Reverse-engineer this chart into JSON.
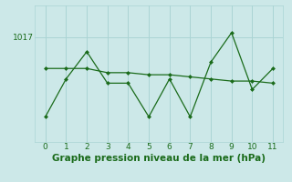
{
  "title": "Graphe pression niveau de la mer (hPa)",
  "background_color": "#cce8e8",
  "line_color": "#1a6b1a",
  "grid_color": "#aad4d4",
  "x_values": [
    0,
    1,
    2,
    3,
    4,
    5,
    6,
    7,
    8,
    9,
    10,
    11
  ],
  "series1_y": [
    1013.2,
    1015.0,
    1016.3,
    1014.8,
    1014.8,
    1013.2,
    1015.0,
    1013.2,
    1015.8,
    1017.2,
    1014.5,
    1015.5
  ],
  "series2_y": [
    1015.5,
    1015.5,
    1015.5,
    1015.3,
    1015.3,
    1015.2,
    1015.2,
    1015.1,
    1015.0,
    1014.9,
    1014.9,
    1014.8
  ],
  "ytick_label": "1017",
  "ytick_value": 1017,
  "ylim": [
    1012.0,
    1018.5
  ],
  "xlim": [
    -0.5,
    11.5
  ],
  "title_fontsize": 7.5,
  "tick_fontsize": 6.5
}
